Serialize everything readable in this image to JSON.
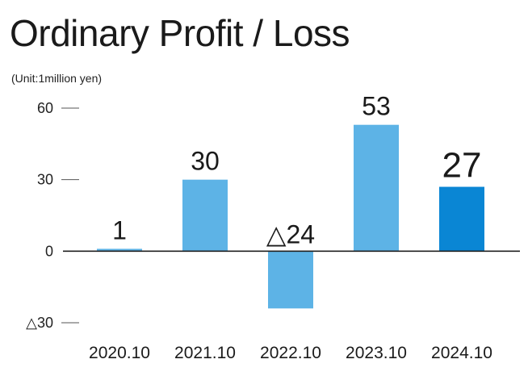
{
  "header": {
    "title": "Ordinary Profit / Loss",
    "unit": "(Unit:1million yen)"
  },
  "colors": {
    "bar": "#5DB3E6",
    "bar_highlight": "#0A86D4",
    "axis": "#222222",
    "tick": "#555555"
  },
  "chart_data": {
    "type": "bar",
    "title": "Ordinary Profit / Loss",
    "xlabel": "",
    "ylabel": "",
    "unit": "(Unit:1million yen)",
    "categories": [
      "2020.10",
      "2021.10",
      "2022.10",
      "2023.10",
      "2024.10"
    ],
    "values": [
      1,
      30,
      -24,
      53,
      27
    ],
    "data_labels": [
      "1",
      "30",
      "△24",
      "53",
      "27"
    ],
    "highlight_index": 4,
    "ylim": [
      -30,
      60
    ],
    "yticks": [
      60,
      30,
      0,
      -30
    ],
    "ytick_labels": [
      "60",
      "30",
      "0",
      "△30"
    ],
    "grid": false,
    "legend": "none"
  }
}
